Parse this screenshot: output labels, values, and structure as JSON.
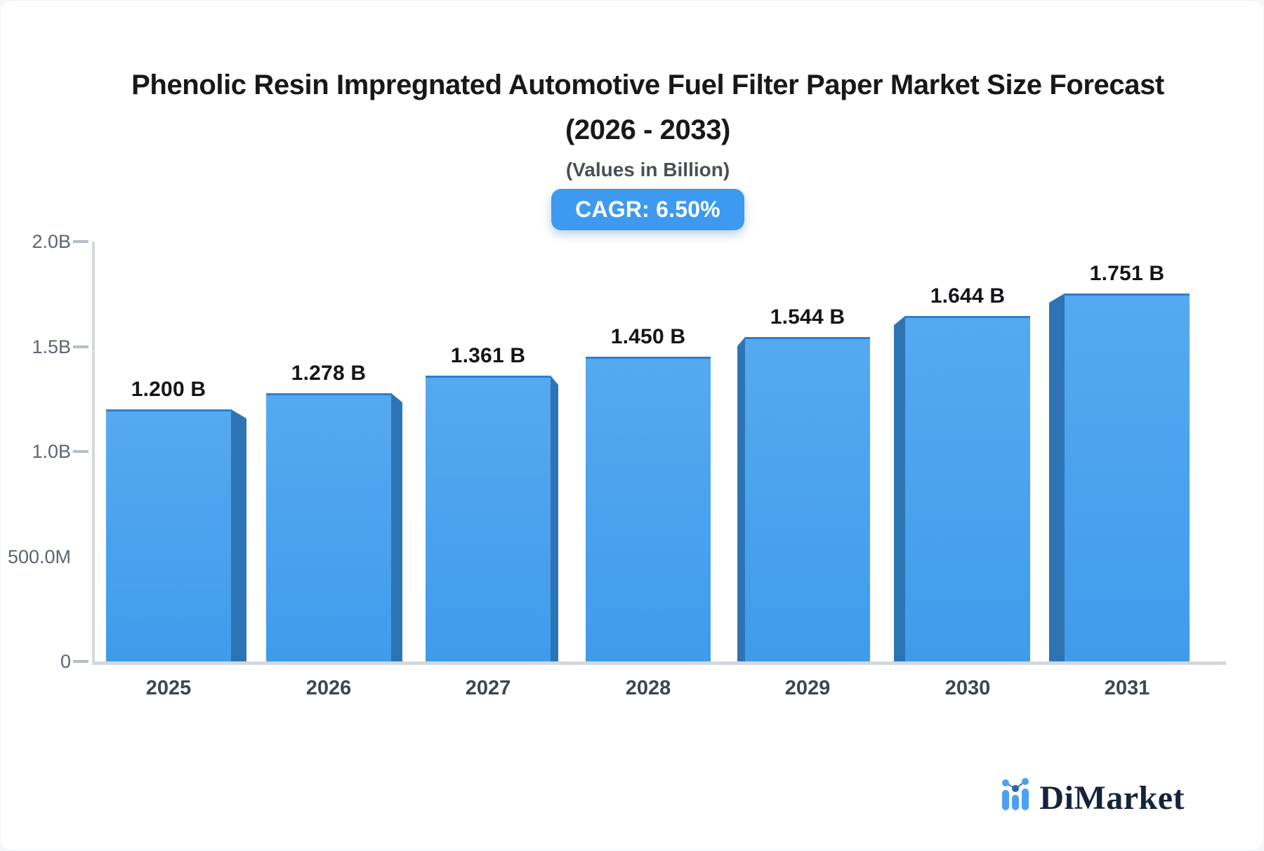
{
  "header": {
    "title_line1": "Phenolic Resin Impregnated Automotive Fuel Filter Paper Market Size Forecast",
    "title_line2": "(2026 - 2033)",
    "subtitle": "(Values in Billion)",
    "cagr_label": "CAGR: 6.50%"
  },
  "chart_data": {
    "type": "bar",
    "title": "Phenolic Resin Impregnated Automotive Fuel Filter Paper Market Size Forecast (2026 - 2033)",
    "subtitle": "(Values in Billion)",
    "unit": "Billion",
    "cagr_percent": 6.5,
    "xlabel": "",
    "ylabel": "",
    "grid": false,
    "legend": false,
    "ylim": [
      0,
      2.0
    ],
    "categories": [
      "2025",
      "2026",
      "2027",
      "2028",
      "2029",
      "2030",
      "2031"
    ],
    "values": [
      1.2,
      1.278,
      1.361,
      1.45,
      1.544,
      1.644,
      1.751
    ],
    "value_labels": [
      "1.200 B",
      "1.278 B",
      "1.361 B",
      "1.450 B",
      "1.544 B",
      "1.644 B",
      "1.751 B"
    ],
    "yticks": [
      {
        "label": "2.0B",
        "value": 2.0,
        "tick": true
      },
      {
        "label": "1.5B",
        "value": 1.5,
        "tick": true
      },
      {
        "label": "1.0B",
        "value": 1.0,
        "tick": true
      },
      {
        "label": "500.0M",
        "value": 0.5,
        "tick": false
      },
      {
        "label": "0",
        "value": 0.0,
        "tick": true
      }
    ],
    "colors": {
      "bar_face_top": "#55a9f0",
      "bar_face_bottom": "#3f9ceb",
      "bar_side": "#2d74b4",
      "bar_top_border": "#2b7fd2",
      "axis_line": "#d4d7dc",
      "tick": "#b6bdc5",
      "y_label": "#5b6570",
      "x_label": "#3c4654",
      "value_label": "#141519"
    }
  },
  "badge": {
    "background": "#3d9af0",
    "text_color": "#ffffff"
  },
  "footer": {
    "brand": "DiMarket",
    "logo_icon": "dimarket-bars-icon",
    "brand_color": "#16233b",
    "icon_blue": "#4aa0f5",
    "icon_dark_dot": "#2c66a8"
  }
}
